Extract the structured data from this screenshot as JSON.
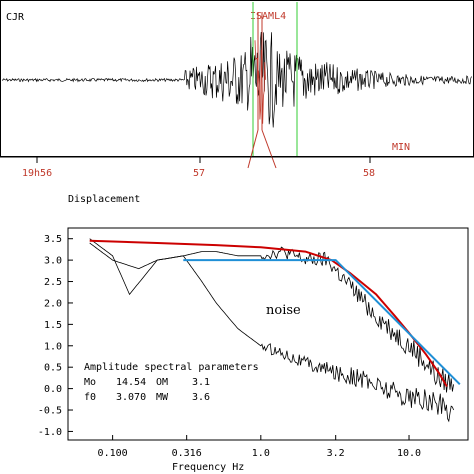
{
  "chart_data": [
    {
      "type": "line",
      "panel": "seismogram",
      "station": "CJR",
      "phase_label": "ISAML4",
      "time_ticks": [
        "19h56",
        "57",
        "58"
      ],
      "time_unit": "MIN",
      "colors": {
        "trace": "#000000",
        "picks": "#c0392b",
        "window": "#33cc33"
      }
    },
    {
      "type": "line",
      "panel": "spectrum",
      "title": "Displacement",
      "xlabel": "Frequency  Hz",
      "x_scale": "log",
      "xlim": [
        0.05,
        25
      ],
      "ylim": [
        -1.2,
        3.75
      ],
      "x_ticks": [
        "0.100",
        "0.316",
        "1.0",
        "3.2",
        "10.0"
      ],
      "x_tick_values": [
        0.1,
        0.316,
        1.0,
        3.2,
        10.0
      ],
      "y_ticks": [
        "3.5",
        "3.0",
        "2.5",
        "2.0",
        "1.5",
        "1.0",
        "0.5",
        "0.0",
        "-0.5",
        "-1.0"
      ],
      "y_tick_values": [
        3.5,
        3.0,
        2.5,
        2.0,
        1.5,
        1.0,
        0.5,
        0.0,
        -0.5,
        -1.0
      ],
      "annotation": "noise",
      "series": [
        {
          "role": "signal-spectrum",
          "color": "#000000",
          "x": [
            0.07,
            0.1,
            0.15,
            0.2,
            0.3,
            0.4,
            0.5,
            0.7,
            1.0,
            1.4,
            2.0,
            2.8,
            3.5,
            4.5,
            6.0,
            8.0,
            10.0,
            13.0,
            16.0,
            20.0
          ],
          "y": [
            3.4,
            3.0,
            2.8,
            3.0,
            3.1,
            3.2,
            3.2,
            3.1,
            3.1,
            3.2,
            3.0,
            3.0,
            2.6,
            2.2,
            1.7,
            1.3,
            1.0,
            0.6,
            0.2,
            0.1
          ]
        },
        {
          "role": "noise-spectrum",
          "color": "#000000",
          "x": [
            0.07,
            0.1,
            0.13,
            0.2,
            0.3,
            0.4,
            0.5,
            0.7,
            1.0,
            1.5,
            2.0,
            3.0,
            4.0,
            5.0,
            7.0,
            10.0,
            14.0,
            20.0
          ],
          "y": [
            3.5,
            3.1,
            2.2,
            3.0,
            3.1,
            2.5,
            2.0,
            1.4,
            1.0,
            0.8,
            0.6,
            0.4,
            0.3,
            0.2,
            0.0,
            -0.2,
            -0.3,
            -0.5
          ]
        },
        {
          "role": "model-fit",
          "color": "#cc0000",
          "x": [
            0.07,
            0.2,
            0.5,
            1.0,
            2.0,
            3.0,
            4.0,
            6.0,
            8.0,
            10.0,
            13.0,
            16.0,
            18.0
          ],
          "y": [
            3.45,
            3.4,
            3.35,
            3.3,
            3.2,
            3.0,
            2.7,
            2.2,
            1.7,
            1.3,
            0.8,
            0.35,
            0.05
          ]
        },
        {
          "role": "asymptotes",
          "color": "#1f8fd6",
          "x": [
            0.3,
            3.2,
            3.2,
            22.0
          ],
          "y": [
            3.0,
            3.0,
            3.0,
            0.1
          ]
        }
      ]
    }
  ],
  "params": {
    "title": "Amplitude spectral parameters",
    "rows": [
      {
        "k1": "Mo",
        "v1": "14.54",
        "k2": "OM",
        "v2": "3.1"
      },
      {
        "k1": "f0",
        "v1": "3.070",
        "k2": "MW",
        "v2": "3.6"
      }
    ]
  }
}
